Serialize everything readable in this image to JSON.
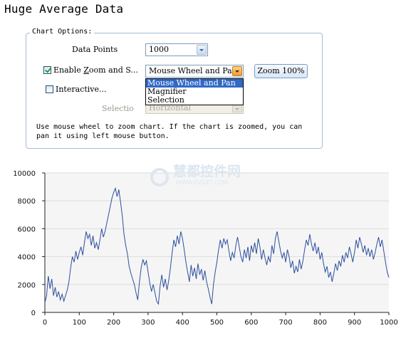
{
  "page": {
    "title": "Huge Average Data"
  },
  "options": {
    "legend": "Chart Options:",
    "data_points": {
      "label": "Data Points",
      "value": "1000"
    },
    "enable_zoom": {
      "label_prefix": "Enable ",
      "label_mnemonic": "Z",
      "label_suffix": "oom and S...",
      "checked": true
    },
    "zoom_mode": {
      "value": "Mouse Wheel and Pan",
      "options": [
        "Mouse Wheel and Pan",
        "Magnifier",
        "Selection"
      ],
      "selected_index": 0
    },
    "zoom_button_label": "Zoom 100%",
    "interactive": {
      "label": "Interactive...",
      "checked": false
    },
    "selection": {
      "label": "Selectio",
      "value": "Horizontal",
      "disabled": true
    },
    "description": "Use mouse wheel to zoom chart. If the chart is zoomed, you can pan it using left mouse button."
  },
  "watermark": {
    "cn": "慧都控件网",
    "url": "WWW.EVGET.COM"
  },
  "colors": {
    "series": "#2c4f9e",
    "plot_bg": "#f5f5f5",
    "grid": "#dcdcdc",
    "accent_button": "#f29a2e"
  },
  "chart_data": {
    "type": "line",
    "xlim": [
      0,
      1000
    ],
    "ylim": [
      0,
      10000
    ],
    "x_ticks": [
      0,
      100,
      200,
      300,
      400,
      500,
      600,
      700,
      800,
      900,
      1000
    ],
    "y_ticks": [
      0,
      2000,
      4000,
      6000,
      8000,
      10000
    ],
    "grid": "horizontal",
    "legend": "none",
    "series": [
      {
        "points": [
          [
            0,
            700
          ],
          [
            5,
            1200
          ],
          [
            10,
            2600
          ],
          [
            15,
            1700
          ],
          [
            20,
            2400
          ],
          [
            25,
            1200
          ],
          [
            30,
            1800
          ],
          [
            35,
            1100
          ],
          [
            40,
            1500
          ],
          [
            45,
            900
          ],
          [
            50,
            1300
          ],
          [
            55,
            800
          ],
          [
            60,
            1200
          ],
          [
            65,
            1600
          ],
          [
            70,
            2200
          ],
          [
            75,
            3200
          ],
          [
            80,
            4000
          ],
          [
            85,
            3600
          ],
          [
            90,
            4400
          ],
          [
            95,
            3800
          ],
          [
            100,
            4300
          ],
          [
            105,
            4700
          ],
          [
            110,
            4100
          ],
          [
            115,
            5000
          ],
          [
            120,
            5800
          ],
          [
            125,
            5300
          ],
          [
            130,
            5600
          ],
          [
            135,
            4800
          ],
          [
            140,
            5500
          ],
          [
            145,
            4600
          ],
          [
            150,
            5000
          ],
          [
            155,
            4500
          ],
          [
            160,
            5200
          ],
          [
            165,
            6000
          ],
          [
            170,
            5400
          ],
          [
            175,
            5800
          ],
          [
            180,
            6400
          ],
          [
            185,
            7000
          ],
          [
            190,
            7600
          ],
          [
            195,
            8200
          ],
          [
            200,
            8600
          ],
          [
            205,
            8900
          ],
          [
            210,
            8300
          ],
          [
            215,
            8800
          ],
          [
            220,
            7900
          ],
          [
            225,
            6900
          ],
          [
            230,
            5600
          ],
          [
            235,
            4800
          ],
          [
            240,
            4200
          ],
          [
            245,
            3300
          ],
          [
            250,
            2800
          ],
          [
            255,
            2400
          ],
          [
            260,
            2000
          ],
          [
            265,
            1400
          ],
          [
            270,
            900
          ],
          [
            275,
            2200
          ],
          [
            280,
            3200
          ],
          [
            285,
            3800
          ],
          [
            290,
            3400
          ],
          [
            295,
            3700
          ],
          [
            300,
            2900
          ],
          [
            305,
            2100
          ],
          [
            310,
            1500
          ],
          [
            315,
            2000
          ],
          [
            320,
            1400
          ],
          [
            325,
            800
          ],
          [
            330,
            600
          ],
          [
            335,
            1900
          ],
          [
            340,
            2700
          ],
          [
            345,
            1800
          ],
          [
            350,
            2400
          ],
          [
            355,
            1600
          ],
          [
            360,
            2300
          ],
          [
            365,
            3200
          ],
          [
            370,
            4300
          ],
          [
            375,
            5200
          ],
          [
            380,
            4700
          ],
          [
            385,
            5500
          ],
          [
            390,
            4900
          ],
          [
            395,
            5800
          ],
          [
            400,
            5300
          ],
          [
            405,
            4500
          ],
          [
            410,
            3600
          ],
          [
            415,
            2900
          ],
          [
            420,
            2200
          ],
          [
            425,
            3400
          ],
          [
            430,
            2600
          ],
          [
            435,
            3200
          ],
          [
            440,
            2400
          ],
          [
            445,
            3500
          ],
          [
            450,
            2700
          ],
          [
            455,
            3100
          ],
          [
            460,
            2300
          ],
          [
            465,
            3000
          ],
          [
            470,
            2200
          ],
          [
            475,
            1700
          ],
          [
            480,
            1100
          ],
          [
            485,
            600
          ],
          [
            490,
            2000
          ],
          [
            495,
            2900
          ],
          [
            500,
            3600
          ],
          [
            505,
            4500
          ],
          [
            510,
            5200
          ],
          [
            515,
            4600
          ],
          [
            520,
            5300
          ],
          [
            525,
            4900
          ],
          [
            530,
            5200
          ],
          [
            535,
            4400
          ],
          [
            540,
            3700
          ],
          [
            545,
            4300
          ],
          [
            550,
            3900
          ],
          [
            555,
            4800
          ],
          [
            560,
            5400
          ],
          [
            565,
            4700
          ],
          [
            570,
            4000
          ],
          [
            575,
            3600
          ],
          [
            580,
            4500
          ],
          [
            585,
            3900
          ],
          [
            590,
            4700
          ],
          [
            595,
            3700
          ],
          [
            600,
            4800
          ],
          [
            605,
            4300
          ],
          [
            610,
            5000
          ],
          [
            615,
            4200
          ],
          [
            620,
            5300
          ],
          [
            625,
            4700
          ],
          [
            630,
            3800
          ],
          [
            635,
            4500
          ],
          [
            640,
            3900
          ],
          [
            645,
            3400
          ],
          [
            650,
            4000
          ],
          [
            655,
            3600
          ],
          [
            660,
            4800
          ],
          [
            665,
            4200
          ],
          [
            670,
            5300
          ],
          [
            675,
            5800
          ],
          [
            680,
            5100
          ],
          [
            685,
            4400
          ],
          [
            690,
            3900
          ],
          [
            695,
            4300
          ],
          [
            700,
            3600
          ],
          [
            705,
            4500
          ],
          [
            710,
            4000
          ],
          [
            715,
            3200
          ],
          [
            720,
            3700
          ],
          [
            725,
            2800
          ],
          [
            730,
            3300
          ],
          [
            735,
            2900
          ],
          [
            740,
            3800
          ],
          [
            745,
            3100
          ],
          [
            750,
            3700
          ],
          [
            755,
            4500
          ],
          [
            760,
            5200
          ],
          [
            765,
            4800
          ],
          [
            770,
            5600
          ],
          [
            775,
            4900
          ],
          [
            780,
            4400
          ],
          [
            785,
            5000
          ],
          [
            790,
            4200
          ],
          [
            795,
            4700
          ],
          [
            800,
            3800
          ],
          [
            805,
            4300
          ],
          [
            810,
            3500
          ],
          [
            815,
            2900
          ],
          [
            820,
            3300
          ],
          [
            825,
            2500
          ],
          [
            830,
            2900
          ],
          [
            835,
            2200
          ],
          [
            840,
            2800
          ],
          [
            845,
            3500
          ],
          [
            850,
            3000
          ],
          [
            855,
            3700
          ],
          [
            860,
            3300
          ],
          [
            865,
            4100
          ],
          [
            870,
            3600
          ],
          [
            875,
            4300
          ],
          [
            880,
            3900
          ],
          [
            885,
            4700
          ],
          [
            890,
            4200
          ],
          [
            895,
            3600
          ],
          [
            900,
            4300
          ],
          [
            905,
            5200
          ],
          [
            910,
            4600
          ],
          [
            915,
            5400
          ],
          [
            920,
            4900
          ],
          [
            925,
            4300
          ],
          [
            930,
            4800
          ],
          [
            935,
            4100
          ],
          [
            940,
            4600
          ],
          [
            945,
            4000
          ],
          [
            950,
            4500
          ],
          [
            955,
            3800
          ],
          [
            960,
            4300
          ],
          [
            965,
            4900
          ],
          [
            970,
            5400
          ],
          [
            975,
            4700
          ],
          [
            980,
            5200
          ],
          [
            985,
            4400
          ],
          [
            990,
            3600
          ],
          [
            995,
            2900
          ],
          [
            1000,
            2500
          ]
        ]
      }
    ]
  }
}
